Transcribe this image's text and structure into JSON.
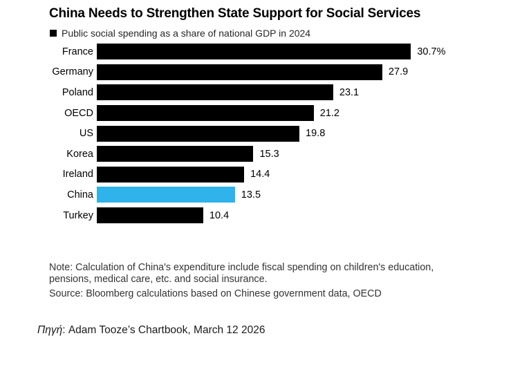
{
  "chart_data": {
    "type": "bar",
    "orientation": "horizontal",
    "title": "China Needs to Strengthen State Support for Social Services",
    "legend": "Public social spending as a share of national GDP in 2024",
    "categories": [
      "France",
      "Germany",
      "Poland",
      "OECD",
      "US",
      "Korea",
      "Ireland",
      "China",
      "Turkey"
    ],
    "values": [
      30.7,
      27.9,
      23.1,
      21.2,
      19.8,
      15.3,
      14.4,
      13.5,
      10.4
    ],
    "value_labels": [
      "30.7%",
      "27.9",
      "23.1",
      "21.2",
      "19.8",
      "15.3",
      "14.4",
      "13.5",
      "10.4"
    ],
    "highlight_category": "China",
    "bar_color": "#000000",
    "highlight_color": "#2fb3ea",
    "xlim": [
      0,
      33
    ],
    "grid": false,
    "legend_position": "top-left"
  },
  "notes": {
    "line1": "Note: Calculation of China's expenditure include fiscal spending on children's education,",
    "line2": "pensions, medical care, etc. and social insurance.",
    "line3": "Source: Bloomberg calculations based on Chinese government data, OECD"
  },
  "caption": {
    "prefix_italic": "Πηγή",
    "rest": ": Adam Tooze’s Chartbook, March 12 2026"
  }
}
